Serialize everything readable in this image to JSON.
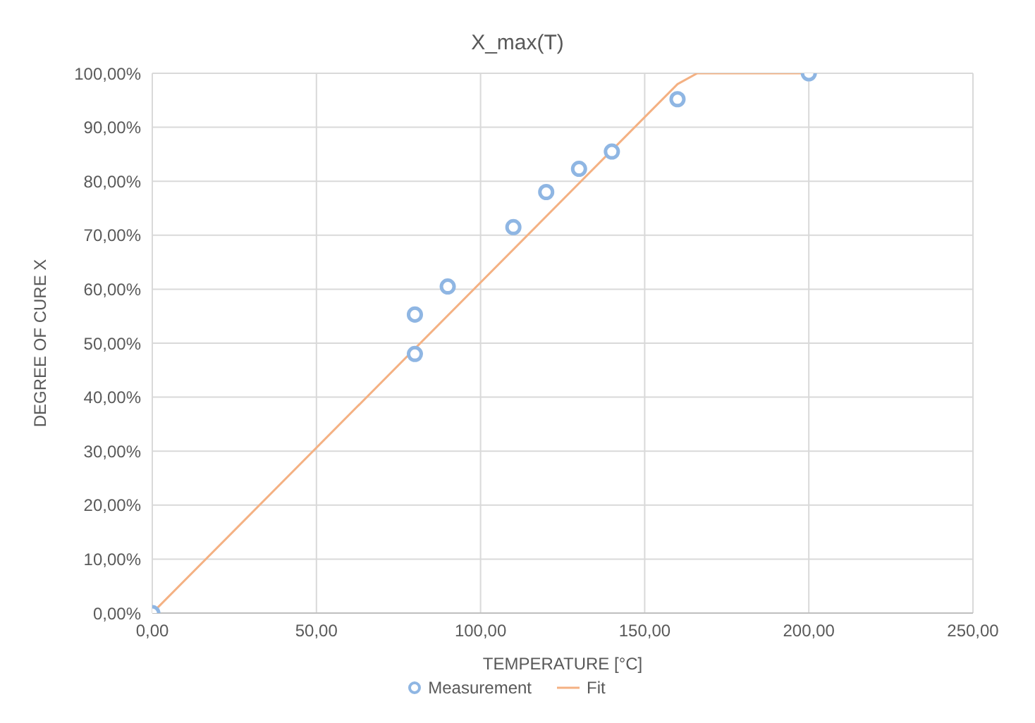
{
  "chart_data": {
    "type": "scatter",
    "title": "X_max(T)",
    "xlabel": "TEMPERATURE [°C]",
    "ylabel": "DEGREE OF CURE X",
    "series": [
      {
        "name": "Measurement",
        "color": "#8fb6e3",
        "marker": "circle",
        "x": [
          0,
          80,
          80,
          90,
          110,
          120,
          130,
          140,
          160,
          200
        ],
        "values": [
          0,
          48,
          55.3,
          60.5,
          71.5,
          78,
          82.3,
          85.5,
          95.2,
          100
        ]
      },
      {
        "name": "Fit",
        "type": "line",
        "color": "#f4b183",
        "marker": "none",
        "line_style": "solid",
        "x": [
          0,
          160,
          166,
          200
        ],
        "values": [
          0,
          98,
          100,
          100
        ]
      }
    ],
    "xlim": [
      0,
      250
    ],
    "xticks": [
      {
        "value": 0,
        "label": "0,00"
      },
      {
        "value": 50,
        "label": "50,00"
      },
      {
        "value": 100,
        "label": "100,00"
      },
      {
        "value": 150,
        "label": "150,00"
      },
      {
        "value": 200,
        "label": "200,00"
      },
      {
        "value": 250,
        "label": "250,00"
      }
    ],
    "ylim": [
      0,
      100
    ],
    "yticks": [
      {
        "value": 0,
        "label": "0,00%"
      },
      {
        "value": 10,
        "label": "10,00%"
      },
      {
        "value": 20,
        "label": "20,00%"
      },
      {
        "value": 30,
        "label": "30,00%"
      },
      {
        "value": 40,
        "label": "40,00%"
      },
      {
        "value": 50,
        "label": "50,00%"
      },
      {
        "value": 60,
        "label": "60,00%"
      },
      {
        "value": 70,
        "label": "70,00%"
      },
      {
        "value": 80,
        "label": "80,00%"
      },
      {
        "value": 90,
        "label": "90,00%"
      },
      {
        "value": 100,
        "label": "100,00%"
      }
    ],
    "grid": true,
    "legend": "bottom"
  }
}
